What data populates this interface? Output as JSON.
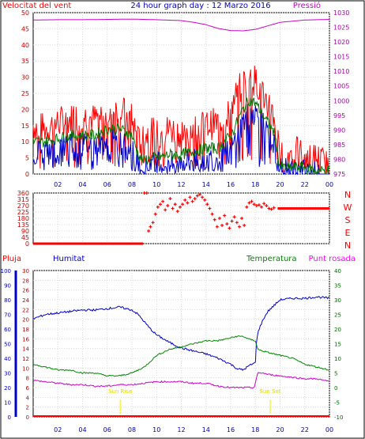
{
  "header": {
    "left_label": "Velocitat del vent",
    "title": "24 hour graph day : 12 Marzo 2016",
    "right_label": "Pressió"
  },
  "bottom_header": {
    "pluja": "Pluja",
    "humitat": "Humitat",
    "temperatura": "Temperatura",
    "punt_rosada": "Punt rosada"
  },
  "direction_letters": [
    "N",
    "W",
    "S",
    "E",
    "N"
  ],
  "sun_labels": {
    "rise": "Sun Rise",
    "set": "Sun Set"
  },
  "colors": {
    "wind_gust": "#ff0000",
    "wind_speed": "#0000cc",
    "wind_low": "#007700",
    "pressure": "#cc00cc",
    "direction": "#ff0000",
    "humidity": "#0000cc",
    "temperature": "#008800",
    "dewpoint": "#cc00cc",
    "rain": "#ff0000",
    "sun": "#eeee00",
    "grid": "#d8d8d8"
  },
  "chart_data": [
    {
      "type": "line",
      "title": "24 hour graph day : 12 Marzo 2016",
      "xlabel": "",
      "x_ticks": [
        "02",
        "04",
        "06",
        "08",
        "10",
        "12",
        "14",
        "16",
        "18",
        "20",
        "22",
        "00"
      ],
      "ylabel_left": "Velocitat del vent",
      "ylim_left": [
        0,
        50
      ],
      "yticks_left": [
        0,
        5,
        10,
        15,
        20,
        25,
        30,
        35,
        40,
        45,
        50
      ],
      "ylabel_right": "Pressió",
      "ylim_right": [
        975,
        1030
      ],
      "yticks_right": [
        975,
        980,
        985,
        990,
        995,
        1000,
        1005,
        1010,
        1015,
        1020,
        1025,
        1030
      ],
      "series": [
        {
          "name": "",
          "axis": "left",
          "x": [
            0,
            1,
            2,
            3,
            4,
            5,
            6,
            7,
            8,
            8.5,
            9,
            9.5,
            10,
            11,
            12,
            13,
            14,
            15,
            16,
            16.5,
            17,
            17.5,
            18,
            18.5,
            19,
            19.5,
            20,
            21,
            22,
            23,
            24
          ],
          "values": [
            15,
            14,
            16,
            17,
            18,
            17,
            19,
            20,
            17,
            10,
            12,
            13,
            12,
            14,
            13,
            14,
            15,
            16,
            20,
            25,
            28,
            30,
            29,
            26,
            22,
            18,
            5,
            7,
            6,
            5,
            2
          ]
        },
        {
          "name": "",
          "axis": "left",
          "x": [
            0,
            1,
            2,
            3,
            4,
            5,
            6,
            7,
            8,
            8.5,
            9,
            9.5,
            10,
            11,
            12,
            13,
            14,
            15,
            16,
            16.5,
            17,
            17.5,
            18,
            18.5,
            19,
            19.5,
            20,
            21,
            22,
            23,
            24
          ],
          "values": [
            10,
            10,
            11,
            12,
            12,
            12,
            14,
            14,
            12,
            6,
            4,
            5,
            5,
            6,
            6,
            7,
            8,
            8,
            12,
            16,
            20,
            23,
            22,
            19,
            16,
            13,
            2,
            2,
            2,
            1,
            1
          ]
        },
        {
          "name": "",
          "axis": "left",
          "x": [
            0,
            1,
            2,
            3,
            4,
            5,
            6,
            7,
            8,
            8.5,
            9,
            9.5,
            10,
            11,
            12,
            13,
            14,
            15,
            16,
            16.5,
            17,
            17.5,
            18,
            18.5,
            19,
            19.5,
            20,
            21,
            22,
            23,
            24
          ],
          "values": [
            7,
            7,
            8,
            9,
            9,
            9,
            10,
            10,
            8,
            3,
            2,
            3,
            3,
            3,
            4,
            4,
            5,
            5,
            7,
            12,
            16,
            19,
            19,
            16,
            12,
            9,
            1,
            1,
            1,
            0,
            0
          ]
        },
        {
          "name": "",
          "axis": "right",
          "x": [
            0,
            2,
            4,
            6,
            8,
            10,
            12,
            13,
            14,
            15,
            16,
            17,
            18,
            19,
            20,
            22,
            24
          ],
          "values": [
            1027.5,
            1027.6,
            1027.6,
            1027.7,
            1027.8,
            1027.6,
            1027.3,
            1026.7,
            1025.9,
            1024.6,
            1023.9,
            1023.8,
            1024.3,
            1025.5,
            1026.7,
            1027.5,
            1027.7
          ]
        }
      ]
    },
    {
      "type": "scatter",
      "title": "",
      "x_ticks": [
        "02",
        "04",
        "06",
        "08",
        "10",
        "12",
        "14",
        "16",
        "18",
        "20",
        "22",
        "00"
      ],
      "ylim": [
        0,
        360
      ],
      "yticks": [
        0,
        45,
        90,
        135,
        180,
        225,
        270,
        315,
        360
      ],
      "series": [
        {
          "name": "",
          "points": [
            [
              0,
              0
            ],
            [
              2,
              0
            ],
            [
              4,
              0
            ],
            [
              6,
              0
            ],
            [
              8,
              0
            ],
            [
              8.9,
              0
            ],
            [
              9.0,
              360
            ],
            [
              9.2,
              360
            ],
            [
              9.35,
              90
            ],
            [
              9.5,
              120
            ],
            [
              9.7,
              150
            ],
            [
              9.9,
              210
            ],
            [
              10.1,
              260
            ],
            [
              10.3,
              280
            ],
            [
              10.5,
              300
            ],
            [
              10.7,
              240
            ],
            [
              10.9,
              270
            ],
            [
              11.1,
              320
            ],
            [
              11.3,
              250
            ],
            [
              11.5,
              280
            ],
            [
              11.7,
              230
            ],
            [
              11.9,
              260
            ],
            [
              12.1,
              280
            ],
            [
              12.3,
              310
            ],
            [
              12.5,
              290
            ],
            [
              12.7,
              330
            ],
            [
              12.9,
              300
            ],
            [
              13.1,
              320
            ],
            [
              13.3,
              340
            ],
            [
              13.5,
              350
            ],
            [
              13.7,
              330
            ],
            [
              13.9,
              310
            ],
            [
              14.1,
              280
            ],
            [
              14.3,
              250
            ],
            [
              14.5,
              210
            ],
            [
              14.7,
              170
            ],
            [
              14.9,
              120
            ],
            [
              15.1,
              180
            ],
            [
              15.3,
              130
            ],
            [
              15.5,
              200
            ],
            [
              15.7,
              140
            ],
            [
              15.9,
              110
            ],
            [
              16.1,
              160
            ],
            [
              16.3,
              190
            ],
            [
              16.5,
              150
            ],
            [
              16.7,
              120
            ],
            [
              16.9,
              180
            ],
            [
              17.1,
              130
            ],
            [
              17.3,
              260
            ],
            [
              17.5,
              290
            ],
            [
              17.7,
              300
            ],
            [
              17.9,
              280
            ],
            [
              18.1,
              270
            ],
            [
              18.3,
              275
            ],
            [
              18.5,
              260
            ],
            [
              18.7,
              285
            ],
            [
              18.9,
              270
            ],
            [
              19.1,
              250
            ],
            [
              19.3,
              245
            ],
            [
              19.5,
              255
            ],
            [
              19.8,
              250
            ],
            [
              20,
              250
            ],
            [
              21,
              250
            ],
            [
              22,
              250
            ],
            [
              23,
              250
            ],
            [
              24,
              250
            ]
          ]
        }
      ]
    },
    {
      "type": "line",
      "title": "",
      "x_ticks": [
        "02",
        "04",
        "06",
        "08",
        "10",
        "12",
        "14",
        "16",
        "18",
        "20",
        "22",
        "00"
      ],
      "ylabel_left_outer": "Pluja",
      "ylim_left_outer": [
        0,
        100
      ],
      "ylabel_left": "Humitat",
      "ylim_left": [
        0,
        30
      ],
      "ylabel_right": "Temperatura / Punt rosada",
      "ylim_right": [
        -10,
        40
      ],
      "series": [
        {
          "name": "Humitat",
          "axis": "left_outer",
          "x": [
            0,
            1,
            2,
            3,
            4,
            5,
            6,
            7,
            8,
            8.5,
            9,
            9.5,
            10,
            11,
            12,
            13,
            14,
            15,
            16,
            16.5,
            17,
            17.5,
            18,
            18.1,
            18.3,
            18.6,
            19,
            20,
            21,
            22,
            23,
            24
          ],
          "values": [
            67,
            70,
            71,
            72,
            73,
            73,
            74,
            75,
            73,
            70,
            65,
            60,
            56,
            51,
            47,
            45,
            43,
            40,
            36,
            33,
            32,
            35,
            37,
            54,
            60,
            66,
            72,
            80,
            81,
            81,
            82,
            81
          ]
        },
        {
          "name": "Temperatura",
          "axis": "right",
          "x": [
            0,
            1,
            2,
            3,
            4,
            5,
            6,
            7,
            8,
            8.5,
            9,
            9.5,
            10,
            11,
            12,
            13,
            14,
            15,
            16,
            16.5,
            17,
            17.5,
            18,
            18.2,
            19,
            20,
            21,
            22,
            23,
            24
          ],
          "values": [
            8,
            7,
            6,
            6,
            5,
            5,
            4,
            4,
            5,
            6,
            7,
            9,
            11,
            13,
            14,
            15,
            16,
            16,
            17,
            17.5,
            17.5,
            16.5,
            16,
            13,
            12,
            11,
            10,
            8,
            7,
            6
          ]
        },
        {
          "name": "Punt rosada",
          "axis": "right",
          "x": [
            0,
            1,
            2,
            3,
            4,
            5,
            6,
            7,
            8,
            9,
            10,
            11,
            12,
            13,
            14,
            15,
            16,
            17,
            17.9,
            18.2,
            18.6,
            19,
            20,
            21,
            22,
            23,
            24
          ],
          "values": [
            2.5,
            2,
            1.5,
            1,
            1,
            0.5,
            0.5,
            1,
            1,
            1.5,
            2,
            2,
            2,
            1.5,
            1.5,
            0.5,
            0,
            0,
            0,
            5,
            5,
            4.5,
            4,
            3.5,
            3,
            3,
            2
          ]
        },
        {
          "name": "Pluja",
          "axis": "left",
          "x": [
            0,
            24
          ],
          "values": [
            0,
            0
          ]
        }
      ],
      "annotations": [
        {
          "label": "Sun Rise",
          "x": 7.05
        },
        {
          "label": "Sun Set",
          "x": 19.2
        }
      ]
    }
  ]
}
